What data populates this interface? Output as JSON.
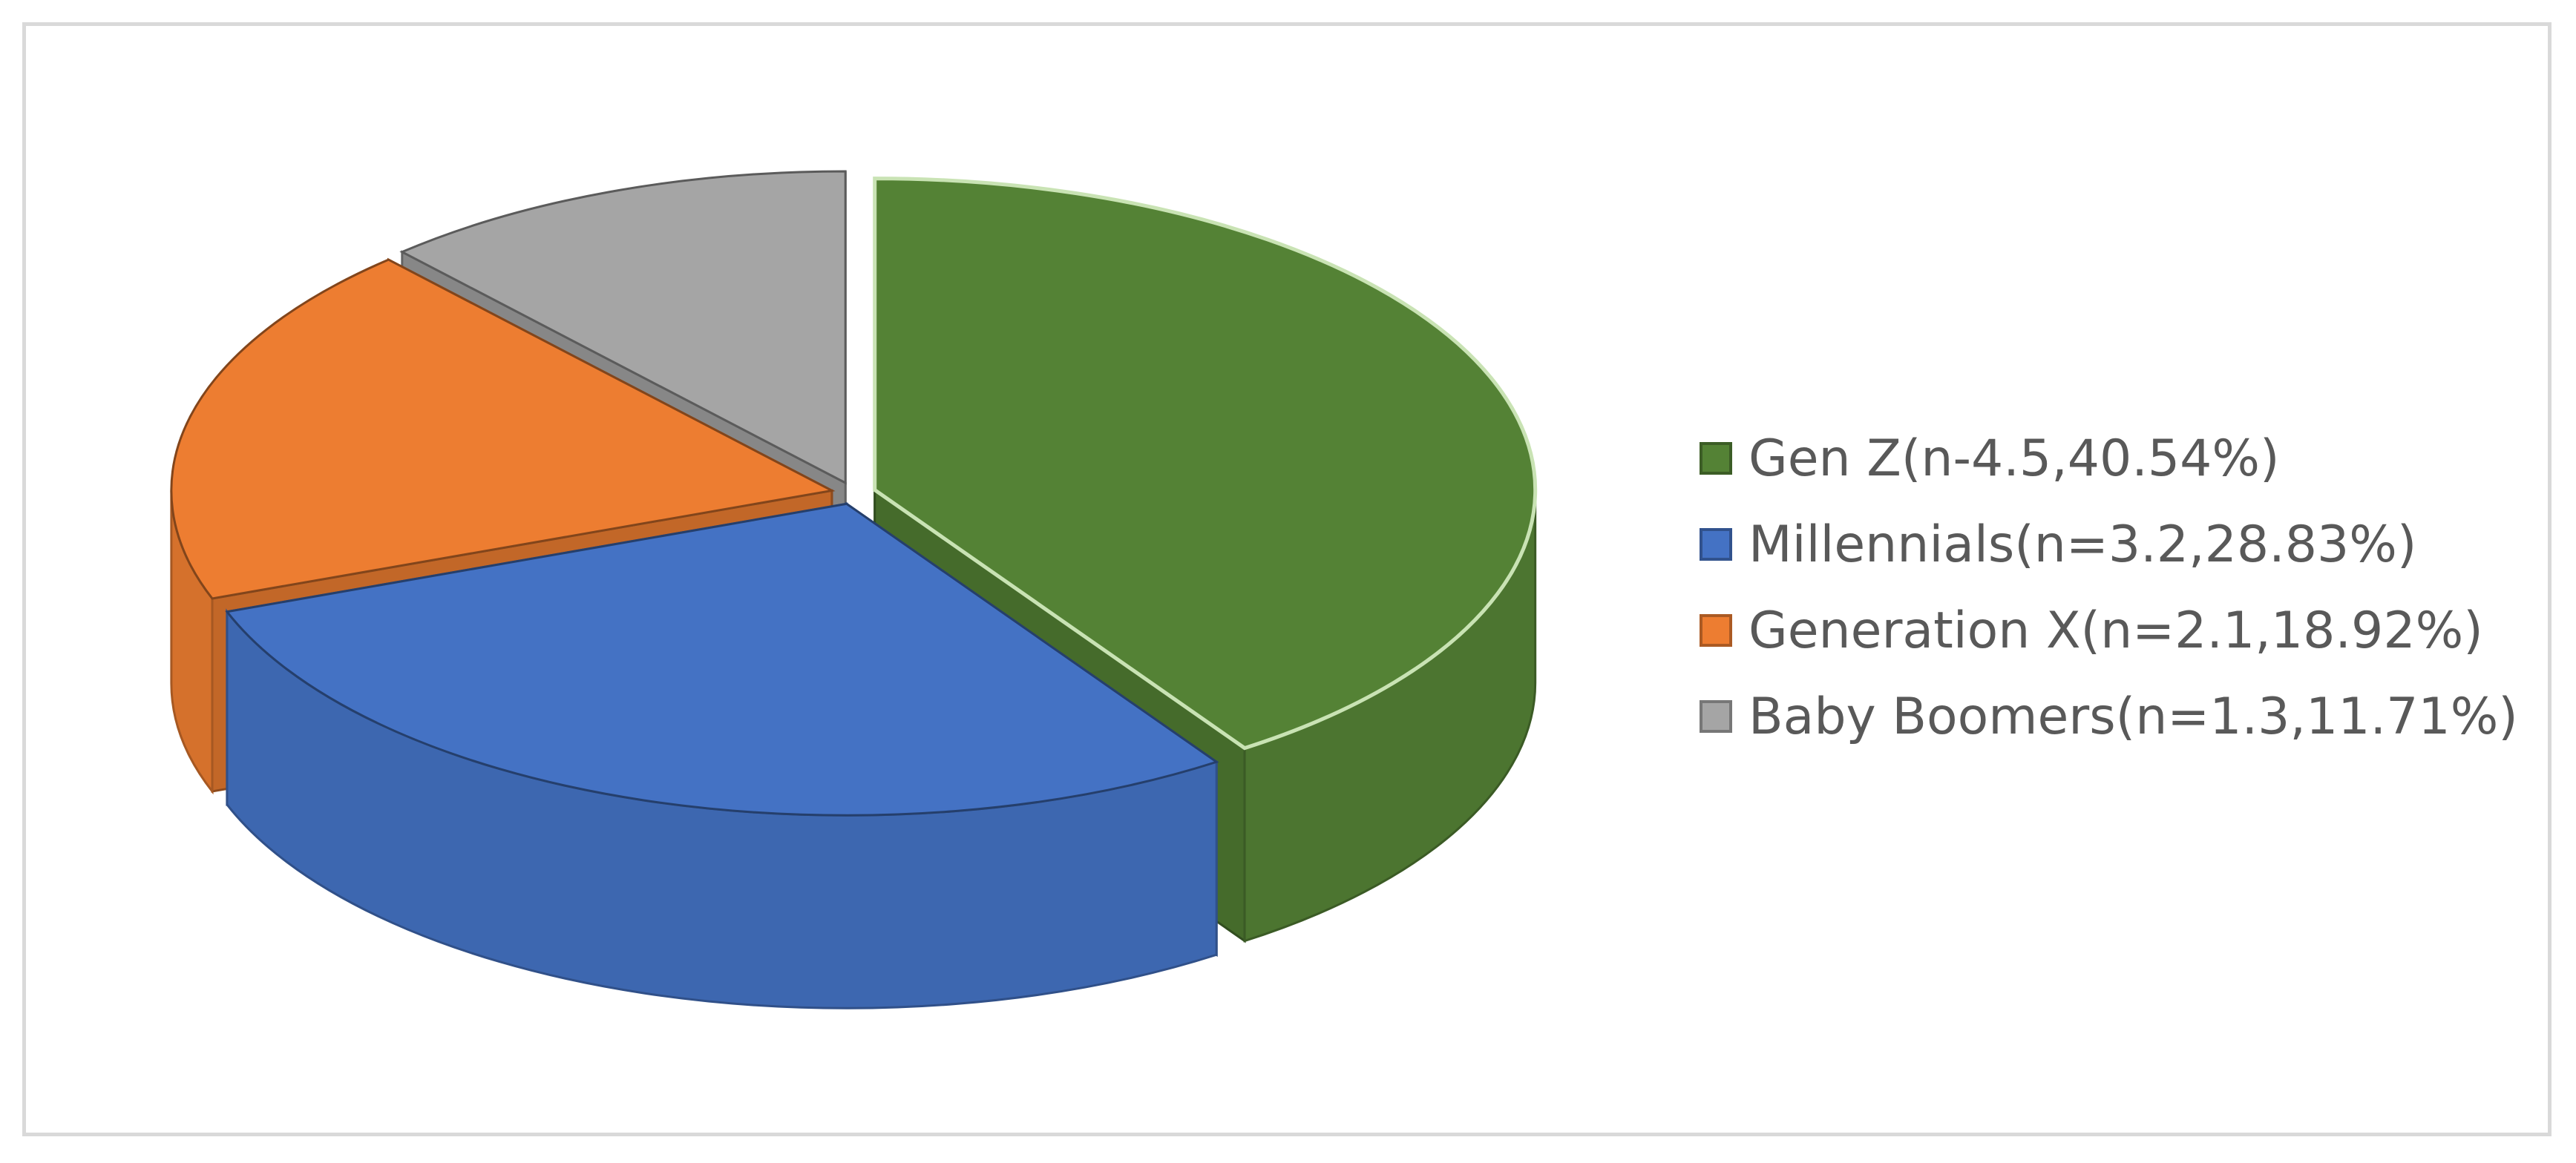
{
  "chart_data": {
    "type": "pie",
    "style": "3d-exploded",
    "categories": [
      "Gen Z",
      "Millennials",
      "Generation X",
      "Baby Boomers"
    ],
    "values": [
      4.5,
      3.2,
      2.1,
      1.3
    ],
    "percentages": [
      40.54,
      28.83,
      18.92,
      11.71
    ],
    "colors": [
      "#548235",
      "#4472C4",
      "#ED7D31",
      "#A5A5A5"
    ],
    "legend": {
      "position": "right",
      "entries": [
        "Gen Z(n-4.5,40.54%)",
        "Millennials(n=3.2,28.83%)",
        "Generation X(n=2.1,18.92%)",
        "Baby Boomers(n=1.3,11.71%)"
      ]
    },
    "title": ""
  }
}
